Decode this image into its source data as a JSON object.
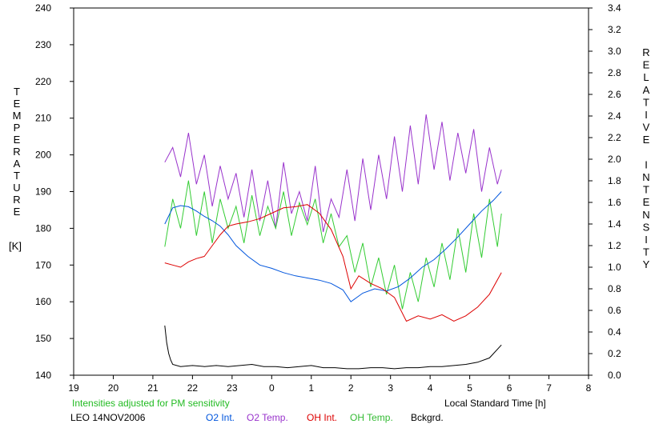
{
  "chart_data": {
    "type": "line",
    "left_axis_label": [
      "T",
      "E",
      "M",
      "P",
      "E",
      "R",
      "A",
      "T",
      "U",
      "R",
      "E"
    ],
    "left_axis_unit": "[K]",
    "right_axis_label": [
      "R",
      "E",
      "L",
      "A",
      "T",
      "I",
      "V",
      "E",
      "",
      "I",
      "N",
      "T",
      "E",
      "N",
      "S",
      "I",
      "T",
      "Y"
    ],
    "xlabel": "Local Standard Time [h]",
    "x_tick_labels": [
      "19",
      "20",
      "21",
      "22",
      "23",
      "0",
      "1",
      "2",
      "3",
      "4",
      "5",
      "6",
      "7",
      "8"
    ],
    "y_left_tick_labels": [
      "140",
      "150",
      "160",
      "170",
      "180",
      "190",
      "200",
      "210",
      "220",
      "230",
      "240"
    ],
    "y_right_tick_labels": [
      "0.0",
      "0.2",
      "0.4",
      "0.6",
      "0.8",
      "1.0",
      "1.2",
      "1.4",
      "1.6",
      "1.8",
      "2.0",
      "2.2",
      "2.4",
      "2.6",
      "2.8",
      "3.0",
      "3.2",
      "3.4"
    ],
    "xlim": [
      19,
      32
    ],
    "ylim_left": [
      140,
      240
    ],
    "ylim_right": [
      0,
      3.4
    ],
    "note": "Intensities adjusted for PM sensitivity",
    "station": "LEO 14NOV2006",
    "grid": false,
    "legend_position": "bottom",
    "series": [
      {
        "name": "O2 Int.",
        "axis": "right",
        "color": "#0055dd",
        "x": [
          21.3,
          21.5,
          21.7,
          21.9,
          22.1,
          22.3,
          22.5,
          22.7,
          22.9,
          23.1,
          23.4,
          23.7,
          24.0,
          24.3,
          24.6,
          24.9,
          25.2,
          25.5,
          25.8,
          26.0,
          26.3,
          26.6,
          26.9,
          27.2,
          27.5,
          27.8,
          28.1,
          28.4,
          28.7,
          29.0,
          29.3,
          29.6,
          29.8
        ],
        "values": [
          1.4,
          1.55,
          1.57,
          1.56,
          1.52,
          1.47,
          1.43,
          1.38,
          1.3,
          1.2,
          1.1,
          1.02,
          0.99,
          0.95,
          0.92,
          0.9,
          0.88,
          0.85,
          0.79,
          0.68,
          0.76,
          0.8,
          0.78,
          0.82,
          0.9,
          1.0,
          1.07,
          1.17,
          1.28,
          1.4,
          1.52,
          1.62,
          1.7
        ]
      },
      {
        "name": "O2 Temp.",
        "axis": "left",
        "color": "#9933cc",
        "x": [
          21.3,
          21.5,
          21.7,
          21.9,
          22.1,
          22.3,
          22.5,
          22.7,
          22.9,
          23.1,
          23.3,
          23.5,
          23.7,
          23.9,
          24.1,
          24.3,
          24.5,
          24.7,
          24.9,
          25.1,
          25.3,
          25.5,
          25.7,
          25.9,
          26.1,
          26.3,
          26.5,
          26.7,
          26.9,
          27.1,
          27.3,
          27.5,
          27.7,
          27.9,
          28.1,
          28.3,
          28.5,
          28.7,
          28.9,
          29.1,
          29.3,
          29.5,
          29.7,
          29.8
        ],
        "values": [
          198,
          202,
          194,
          206,
          192,
          200,
          186,
          197,
          188,
          195,
          183,
          196,
          182,
          193,
          180,
          198,
          184,
          190,
          182,
          197,
          179,
          188,
          183,
          196,
          182,
          199,
          185,
          200,
          188,
          205,
          190,
          208,
          192,
          211,
          196,
          209,
          193,
          206,
          195,
          207,
          190,
          202,
          192,
          196
        ]
      },
      {
        "name": "OH Int.",
        "axis": "right",
        "color": "#dd0000",
        "x": [
          21.3,
          21.5,
          21.7,
          21.9,
          22.1,
          22.3,
          22.5,
          22.7,
          22.9,
          23.1,
          23.4,
          23.7,
          24.0,
          24.3,
          24.6,
          24.9,
          25.2,
          25.5,
          25.8,
          26.0,
          26.2,
          26.5,
          26.8,
          27.1,
          27.4,
          27.7,
          28.0,
          28.3,
          28.6,
          28.9,
          29.2,
          29.5,
          29.8
        ],
        "values": [
          1.04,
          1.02,
          1.0,
          1.05,
          1.08,
          1.1,
          1.2,
          1.3,
          1.38,
          1.4,
          1.42,
          1.45,
          1.5,
          1.55,
          1.56,
          1.58,
          1.5,
          1.35,
          1.1,
          0.8,
          0.92,
          0.85,
          0.8,
          0.72,
          0.5,
          0.55,
          0.52,
          0.56,
          0.5,
          0.55,
          0.63,
          0.75,
          0.95
        ]
      },
      {
        "name": "OH Temp.",
        "axis": "left",
        "color": "#33cc33",
        "x": [
          21.3,
          21.5,
          21.7,
          21.9,
          22.1,
          22.3,
          22.5,
          22.7,
          22.9,
          23.1,
          23.3,
          23.5,
          23.7,
          23.9,
          24.1,
          24.3,
          24.5,
          24.7,
          24.9,
          25.1,
          25.3,
          25.5,
          25.7,
          25.9,
          26.1,
          26.3,
          26.5,
          26.7,
          26.9,
          27.1,
          27.3,
          27.5,
          27.7,
          27.9,
          28.1,
          28.3,
          28.5,
          28.7,
          28.9,
          29.1,
          29.3,
          29.5,
          29.7,
          29.8
        ],
        "values": [
          175,
          188,
          180,
          193,
          178,
          190,
          176,
          188,
          180,
          186,
          176,
          189,
          178,
          186,
          180,
          190,
          178,
          187,
          181,
          188,
          176,
          184,
          175,
          178,
          168,
          176,
          164,
          172,
          162,
          170,
          158,
          168,
          160,
          172,
          164,
          176,
          166,
          180,
          168,
          184,
          172,
          188,
          175,
          184
        ]
      },
      {
        "name": "Bckgrd.",
        "axis": "right",
        "color": "#000000",
        "x": [
          21.3,
          21.35,
          21.4,
          21.45,
          21.5,
          21.7,
          22.0,
          22.3,
          22.6,
          22.9,
          23.2,
          23.5,
          23.8,
          24.1,
          24.4,
          24.7,
          25.0,
          25.3,
          25.6,
          25.9,
          26.2,
          26.5,
          26.8,
          27.1,
          27.4,
          27.7,
          28.0,
          28.3,
          28.6,
          28.9,
          29.2,
          29.5,
          29.8
        ],
        "values": [
          0.46,
          0.3,
          0.2,
          0.14,
          0.1,
          0.08,
          0.09,
          0.08,
          0.09,
          0.08,
          0.09,
          0.1,
          0.08,
          0.08,
          0.07,
          0.08,
          0.09,
          0.07,
          0.07,
          0.06,
          0.06,
          0.07,
          0.07,
          0.06,
          0.07,
          0.07,
          0.08,
          0.08,
          0.09,
          0.1,
          0.12,
          0.16,
          0.28
        ]
      }
    ]
  }
}
